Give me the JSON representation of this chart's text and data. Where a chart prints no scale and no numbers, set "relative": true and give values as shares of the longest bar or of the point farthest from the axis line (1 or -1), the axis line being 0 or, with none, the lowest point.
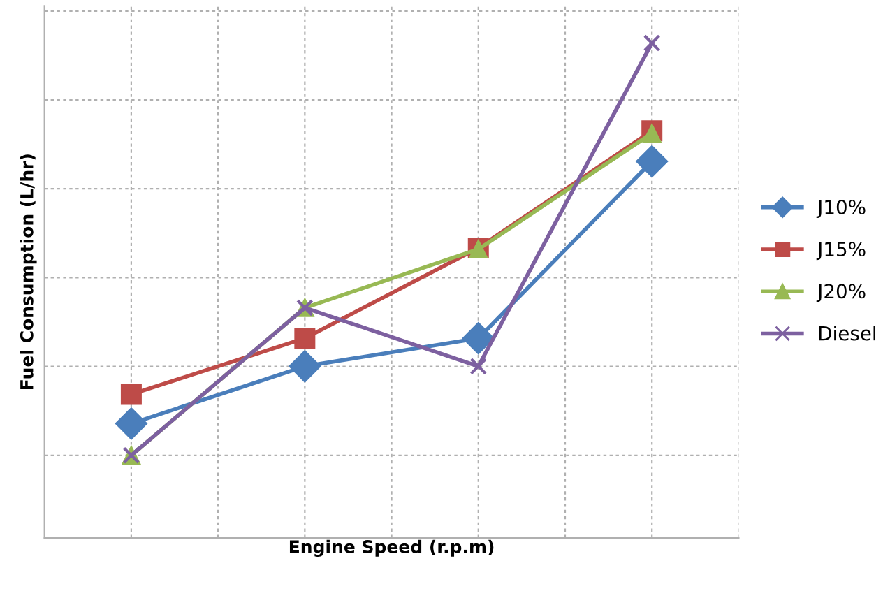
{
  "chart_data": {
    "type": "line",
    "xlabel": "Engine Speed (r.p.m)",
    "ylabel": "Fuel Consumption (L/hr)",
    "categories": [
      null,
      null,
      null,
      null
    ],
    "relative": true,
    "grid": true,
    "legend": "right",
    "tick_labels": false,
    "line_style": "solid",
    "series": [
      {
        "name": "J10%",
        "color": "#4a7ebb",
        "marker": "diamond",
        "values": [
          0.077,
          0.216,
          0.284,
          0.713
        ]
      },
      {
        "name": "J15%",
        "color": "#be4b48",
        "marker": "square",
        "values": [
          0.148,
          0.284,
          0.503,
          0.787
        ]
      },
      {
        "name": "J20%",
        "color": "#98b954",
        "marker": "triangle",
        "values": [
          0,
          0.358,
          0.5,
          0.781
        ]
      },
      {
        "name": "Diesel",
        "color": "#7d60a0",
        "marker": "cross",
        "values": [
          0,
          0.358,
          0.216,
          1
        ]
      }
    ]
  }
}
